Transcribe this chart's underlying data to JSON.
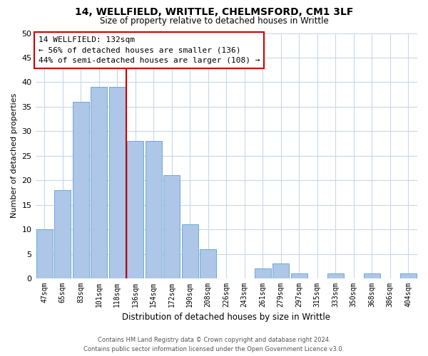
{
  "title1": "14, WELLFIELD, WRITTLE, CHELMSFORD, CM1 3LF",
  "title2": "Size of property relative to detached houses in Writtle",
  "xlabel": "Distribution of detached houses by size in Writtle",
  "ylabel": "Number of detached properties",
  "bar_labels": [
    "47sqm",
    "65sqm",
    "83sqm",
    "101sqm",
    "118sqm",
    "136sqm",
    "154sqm",
    "172sqm",
    "190sqm",
    "208sqm",
    "226sqm",
    "243sqm",
    "261sqm",
    "279sqm",
    "297sqm",
    "315sqm",
    "333sqm",
    "350sqm",
    "368sqm",
    "386sqm",
    "404sqm"
  ],
  "bar_values": [
    10,
    18,
    36,
    39,
    39,
    28,
    28,
    21,
    11,
    6,
    0,
    0,
    2,
    3,
    1,
    0,
    1,
    0,
    1,
    0,
    1
  ],
  "bar_color": "#aec6e8",
  "bar_edge_color": "#6aaad4",
  "vline_index": 4.5,
  "vline_color": "#cc0000",
  "ylim": [
    0,
    50
  ],
  "yticks": [
    0,
    5,
    10,
    15,
    20,
    25,
    30,
    35,
    40,
    45,
    50
  ],
  "annotation_title": "14 WELLFIELD: 132sqm",
  "annotation_line1": "← 56% of detached houses are smaller (136)",
  "annotation_line2": "44% of semi-detached houses are larger (108) →",
  "annotation_box_color": "#ffffff",
  "annotation_box_edge": "#cc0000",
  "footer_line1": "Contains HM Land Registry data © Crown copyright and database right 2024.",
  "footer_line2": "Contains public sector information licensed under the Open Government Licence v3.0.",
  "background_color": "#ffffff",
  "grid_color": "#c8d8e8"
}
